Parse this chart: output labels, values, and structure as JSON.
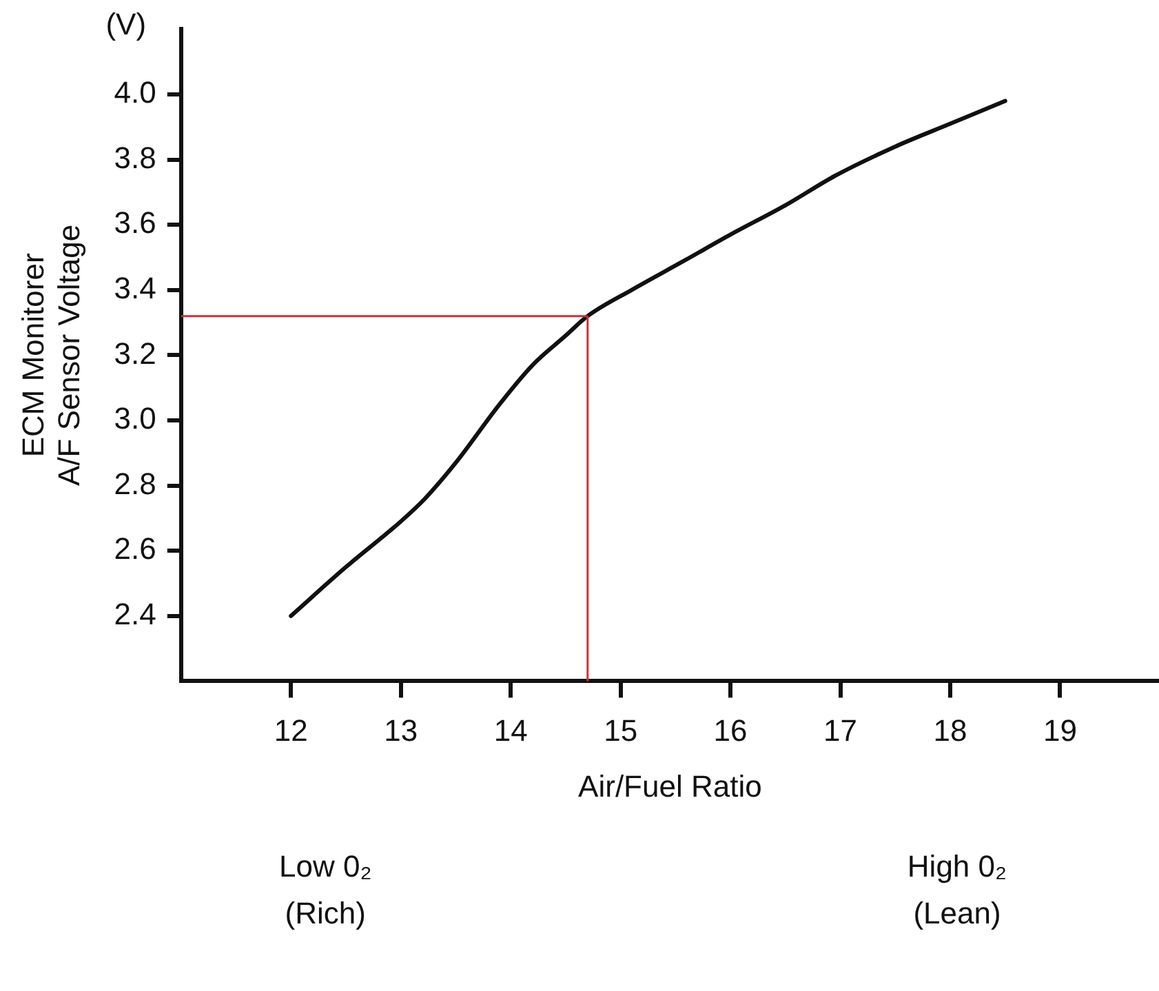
{
  "chart_data": {
    "type": "line",
    "xlabel": "Air/Fuel Ratio",
    "ylabel": "ECM Monitorer\nA/F Sensor Voltage",
    "annotations": [
      "(V)",
      "Low 0₂\n(Rich)",
      "High 0₂\n(Lean)"
    ],
    "series": [
      {
        "color": "#111111",
        "x": [
          12,
          12.5,
          13,
          13.22,
          13.5,
          13.9,
          14.2,
          14.5,
          14.7,
          15.1,
          15.58,
          16,
          16.5,
          16.95,
          17.5,
          18,
          18.5
        ],
        "values": [
          2.4,
          2.55,
          2.69,
          2.76,
          2.87,
          3.05,
          3.17,
          3.26,
          3.32,
          3.4,
          3.49,
          3.57,
          3.66,
          3.75,
          3.84,
          3.91,
          3.98
        ]
      }
    ],
    "xlim": [
      11,
      19.9
    ],
    "xticks": [
      12,
      13,
      14,
      15,
      16,
      17,
      18,
      19
    ],
    "ylim": [
      2.2,
      4.2
    ],
    "yticks": [
      2.4,
      2.6,
      2.8,
      {
        "value": 3,
        "label": "3.0"
      },
      3.2,
      3.4,
      3.6,
      3.8,
      {
        "value": 4,
        "label": "4.0"
      }
    ],
    "ref_lines": [
      {
        "axis": "x",
        "value": 14.7,
        "color": "#cc3333"
      },
      {
        "axis": "y",
        "value": 3.32,
        "color": "#cc3333"
      }
    ],
    "grid": false,
    "legend": false,
    "marker": "none",
    "line_style": "solid"
  }
}
